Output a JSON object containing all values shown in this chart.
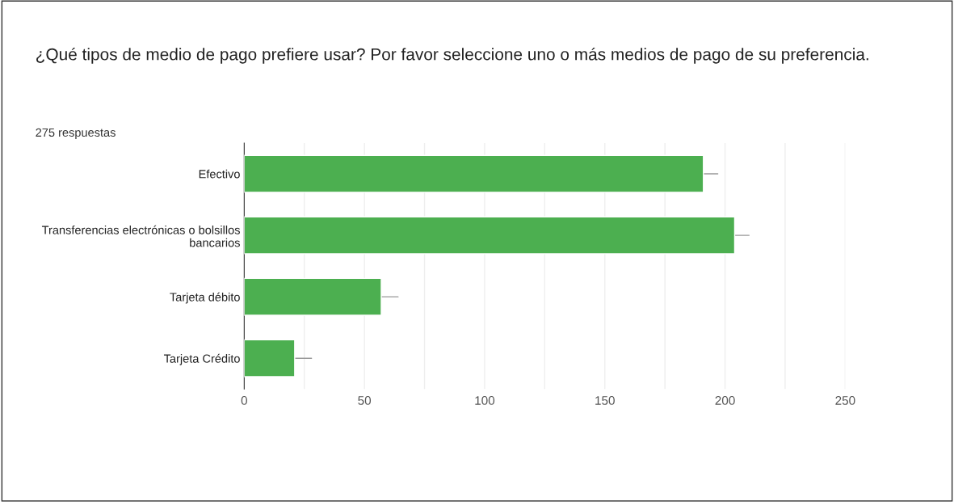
{
  "chart_data": {
    "type": "bar",
    "orientation": "horizontal",
    "title": "¿Qué tipos de medio de pago prefiere usar? Por favor seleccione uno o más medios de pago de su preferencia.",
    "subtitle": "275 respuestas",
    "categories": [
      "Efectivo",
      "Transferencias electrónicas o bolsillos bancarios",
      "Tarjeta débito",
      "Tarjeta Crédito"
    ],
    "values": [
      191,
      204,
      57,
      21
    ],
    "errors": [
      [
        191,
        197
      ],
      [
        204,
        210
      ],
      [
        57,
        64
      ],
      [
        21,
        28
      ]
    ],
    "color": "#4caf50",
    "xlim": [
      0,
      250
    ],
    "xticks": [
      0,
      {
        "value": 25,
        "label": null
      },
      50,
      {
        "value": 75,
        "label": null
      },
      100,
      {
        "value": 125,
        "label": null
      },
      150,
      {
        "value": 175,
        "label": null
      },
      200,
      {
        "value": 225,
        "label": null
      },
      250
    ],
    "grid": "x",
    "legend": false
  }
}
